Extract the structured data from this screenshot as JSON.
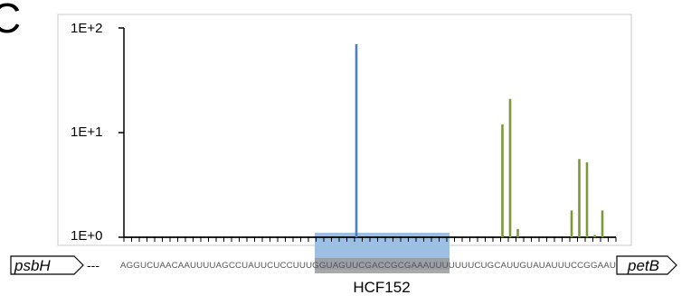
{
  "panel_label": "C",
  "colors": {
    "blue": "#4a7fc1",
    "green": "#7a9a38",
    "highlight": "#9dbfe4",
    "highlight_grey": "#9a9a9a",
    "axis": "#000000",
    "frame": "#c8c8c8"
  },
  "chart_data": {
    "type": "bar",
    "y_scale": "log",
    "ylim": [
      1,
      100
    ],
    "y_ticks": [
      "1E+0",
      "1E+1",
      "1E+2"
    ],
    "x_positions": 64,
    "grid": false,
    "series": [
      {
        "color": "blue",
        "points": [
          {
            "x": 30,
            "y": 70
          }
        ]
      },
      {
        "color": "green",
        "points": [
          {
            "x": 49,
            "y": 12
          },
          {
            "x": 50,
            "y": 21
          },
          {
            "x": 51,
            "y": 1.2
          },
          {
            "x": 58,
            "y": 1.8
          },
          {
            "x": 59,
            "y": 5.6
          },
          {
            "x": 60,
            "y": 5.2
          },
          {
            "x": 61,
            "y": 1.05
          },
          {
            "x": 62,
            "y": 1.8
          }
        ]
      }
    ]
  },
  "annotation": {
    "left_gene": "psbH",
    "left_dashes": "---",
    "sequence": "AGGUCUAACAAUUUUAGCCUAUUCUCCUUUGGUAGUUCGACCGCGAAAUUUUUUUCUGCAUUGUAUAUUUCCGGAAU",
    "right_gene": "petB",
    "region_label": "HCF152"
  }
}
